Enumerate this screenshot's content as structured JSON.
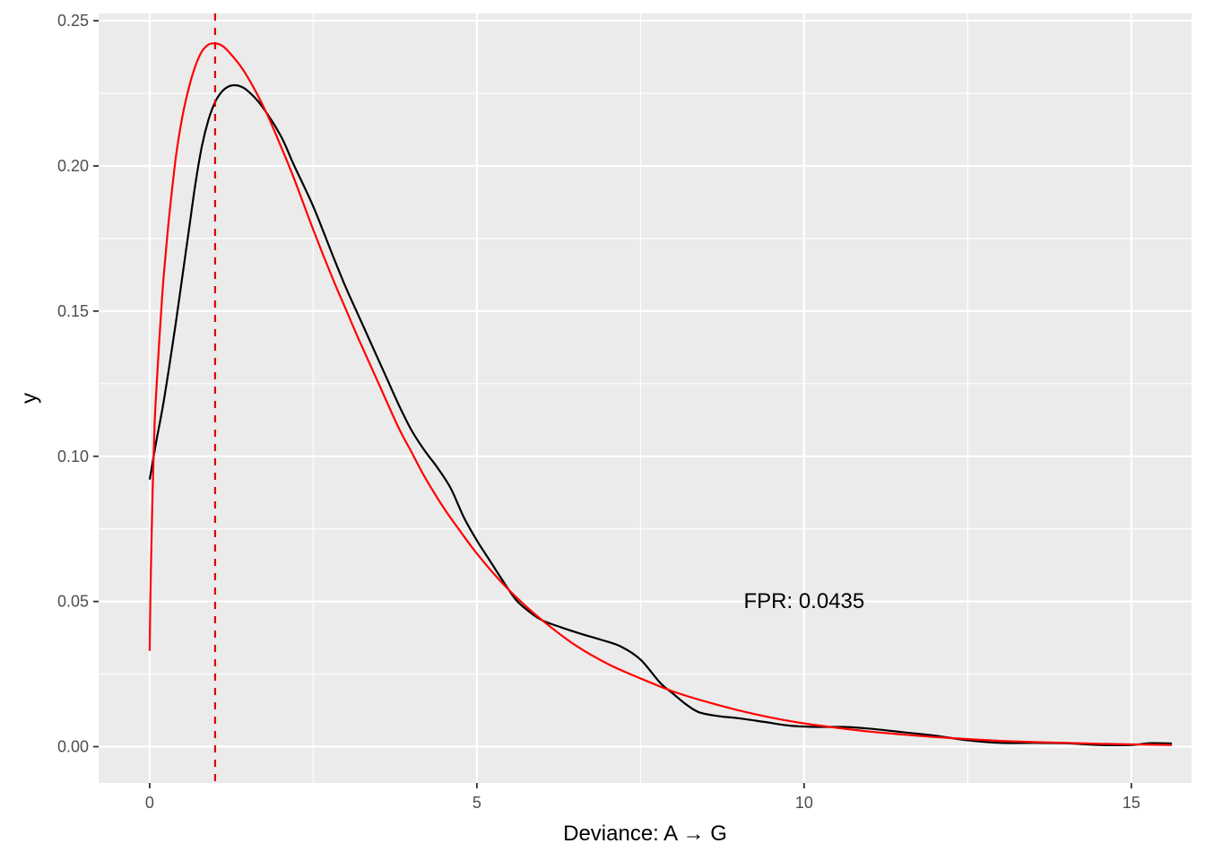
{
  "chart_data": {
    "type": "line",
    "title": "",
    "xlabel": "Deviance: A → G",
    "ylabel": "y",
    "xlim": [
      -0.78,
      15.92
    ],
    "ylim": [
      -0.0125,
      0.2525
    ],
    "x_ticks": [
      0,
      5,
      10,
      15
    ],
    "x_tick_labels": [
      "0",
      "5",
      "10",
      "15"
    ],
    "y_ticks": [
      0.0,
      0.05,
      0.1,
      0.15,
      0.2,
      0.25
    ],
    "y_tick_labels": [
      "0.00",
      "0.05",
      "0.10",
      "0.15",
      "0.20",
      "0.25"
    ],
    "x_minor_ticks": [
      2.5,
      7.5,
      12.5
    ],
    "y_minor_ticks": [
      0.025,
      0.075,
      0.125,
      0.175,
      0.225
    ],
    "grid": true,
    "panel_background": "#ebebeb",
    "grid_color": "#ffffff",
    "series": [
      {
        "color": "#000000",
        "points": [
          [
            0.0,
            0.092
          ],
          [
            0.1,
            0.105
          ],
          [
            0.2,
            0.117
          ],
          [
            0.3,
            0.131
          ],
          [
            0.4,
            0.146
          ],
          [
            0.5,
            0.162
          ],
          [
            0.6,
            0.178
          ],
          [
            0.7,
            0.194
          ],
          [
            0.8,
            0.207
          ],
          [
            0.9,
            0.216
          ],
          [
            1.0,
            0.222
          ],
          [
            1.1,
            0.2255
          ],
          [
            1.2,
            0.2273
          ],
          [
            1.3,
            0.2278
          ],
          [
            1.4,
            0.2273
          ],
          [
            1.5,
            0.2258
          ],
          [
            1.7,
            0.221
          ],
          [
            2.0,
            0.2105
          ],
          [
            2.2,
            0.2005
          ],
          [
            2.5,
            0.186
          ],
          [
            2.8,
            0.169
          ],
          [
            3.0,
            0.158
          ],
          [
            3.2,
            0.148
          ],
          [
            3.4,
            0.138
          ],
          [
            3.6,
            0.128
          ],
          [
            3.8,
            0.118
          ],
          [
            4.0,
            0.109
          ],
          [
            4.2,
            0.102
          ],
          [
            4.4,
            0.096
          ],
          [
            4.6,
            0.089
          ],
          [
            4.8,
            0.079
          ],
          [
            5.0,
            0.071
          ],
          [
            5.2,
            0.064
          ],
          [
            5.4,
            0.057
          ],
          [
            5.6,
            0.0505
          ],
          [
            5.8,
            0.0465
          ],
          [
            6.0,
            0.0435
          ],
          [
            6.3,
            0.041
          ],
          [
            6.6,
            0.0388
          ],
          [
            6.9,
            0.0368
          ],
          [
            7.2,
            0.0345
          ],
          [
            7.5,
            0.03
          ],
          [
            7.8,
            0.022
          ],
          [
            8.0,
            0.0182
          ],
          [
            8.2,
            0.0145
          ],
          [
            8.4,
            0.0118
          ],
          [
            8.7,
            0.0105
          ],
          [
            9.0,
            0.0098
          ],
          [
            9.4,
            0.0085
          ],
          [
            9.8,
            0.0072
          ],
          [
            10.2,
            0.0068
          ],
          [
            10.6,
            0.0068
          ],
          [
            11.0,
            0.0062
          ],
          [
            11.5,
            0.005
          ],
          [
            12.0,
            0.0038
          ],
          [
            12.5,
            0.0022
          ],
          [
            13.0,
            0.0013
          ],
          [
            13.5,
            0.0013
          ],
          [
            14.0,
            0.0012
          ],
          [
            14.5,
            0.0006
          ],
          [
            15.0,
            0.0006
          ],
          [
            15.3,
            0.0012
          ],
          [
            15.62,
            0.0011
          ]
        ]
      },
      {
        "color": "#ff0000",
        "points": [
          [
            0.0,
            0.033
          ],
          [
            0.01,
            0.05
          ],
          [
            0.025,
            0.068
          ],
          [
            0.05,
            0.092
          ],
          [
            0.075,
            0.111
          ],
          [
            0.1,
            0.122
          ],
          [
            0.15,
            0.141
          ],
          [
            0.2,
            0.158
          ],
          [
            0.25,
            0.171
          ],
          [
            0.3,
            0.183
          ],
          [
            0.4,
            0.203
          ],
          [
            0.5,
            0.217
          ],
          [
            0.6,
            0.227
          ],
          [
            0.7,
            0.2345
          ],
          [
            0.8,
            0.2395
          ],
          [
            0.9,
            0.2418
          ],
          [
            1.0,
            0.2422
          ],
          [
            1.1,
            0.2415
          ],
          [
            1.2,
            0.2395
          ],
          [
            1.4,
            0.234
          ],
          [
            1.6,
            0.2265
          ],
          [
            1.8,
            0.2175
          ],
          [
            2.0,
            0.207
          ],
          [
            2.2,
            0.196
          ],
          [
            2.5,
            0.178
          ],
          [
            2.8,
            0.161
          ],
          [
            3.0,
            0.1505
          ],
          [
            3.2,
            0.14
          ],
          [
            3.5,
            0.125
          ],
          [
            3.8,
            0.11
          ],
          [
            4.0,
            0.1015
          ],
          [
            4.2,
            0.093
          ],
          [
            4.5,
            0.082
          ],
          [
            4.8,
            0.0725
          ],
          [
            5.0,
            0.0665
          ],
          [
            5.3,
            0.0585
          ],
          [
            5.6,
            0.0515
          ],
          [
            6.0,
            0.0435
          ],
          [
            6.5,
            0.035
          ],
          [
            7.0,
            0.0285
          ],
          [
            7.5,
            0.0235
          ],
          [
            8.0,
            0.019
          ],
          [
            8.5,
            0.0155
          ],
          [
            9.0,
            0.0125
          ],
          [
            9.5,
            0.01
          ],
          [
            10.0,
            0.008
          ],
          [
            10.5,
            0.0065
          ],
          [
            11.0,
            0.0052
          ],
          [
            11.5,
            0.0042
          ],
          [
            12.0,
            0.0033
          ],
          [
            12.5,
            0.0026
          ],
          [
            13.0,
            0.002
          ],
          [
            13.5,
            0.0016
          ],
          [
            14.0,
            0.0013
          ],
          [
            14.5,
            0.001
          ],
          [
            15.0,
            0.0008
          ],
          [
            15.62,
            0.0006
          ]
        ]
      }
    ],
    "vline": {
      "x": 1.0,
      "color": "#dd0000",
      "style": "dashed"
    },
    "annotations": [
      {
        "text": "FPR: 0.0435",
        "x": 10.0,
        "y": 0.05
      }
    ]
  }
}
